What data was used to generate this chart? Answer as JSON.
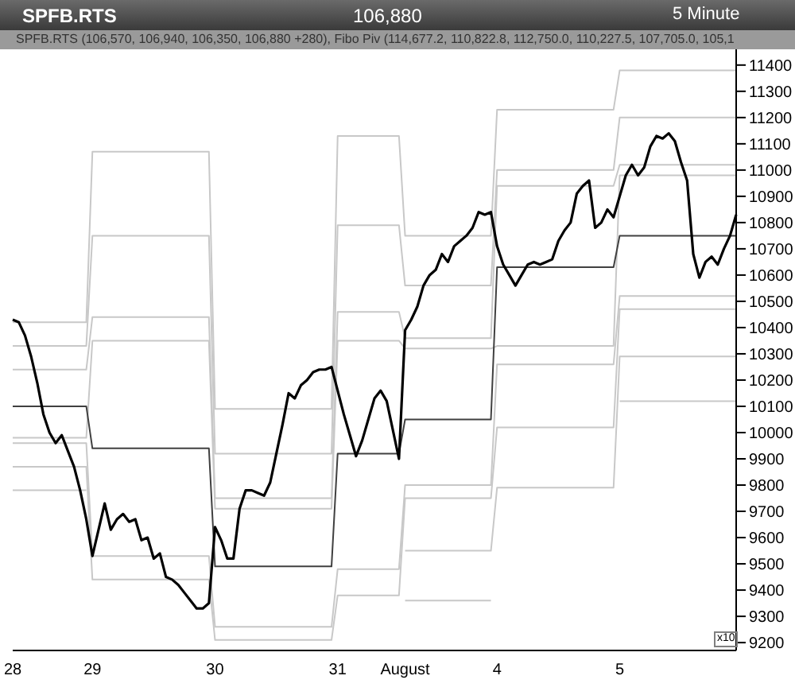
{
  "chart_data": {
    "type": "line",
    "title": "SPFB.RTS",
    "subtitle": "106,880",
    "annotations": [
      "5 Minute",
      "SPFB.RTS (106,570, 106,940, 106,350, 106,880 +280), Fibo Piv (114,677.2, 110,822.8, 112,750.0, 110,227.5, 107,705.0, 105,1"
    ],
    "ylabel": "x10",
    "categories": [
      "28",
      null,
      null,
      null,
      null,
      null,
      null,
      null,
      null,
      null,
      null,
      null,
      null,
      "29",
      null,
      null,
      null,
      null,
      null,
      null,
      null,
      null,
      null,
      null,
      null,
      null,
      null,
      null,
      null,
      null,
      null,
      null,
      null,
      "30",
      null,
      null,
      null,
      null,
      null,
      null,
      null,
      null,
      null,
      null,
      null,
      null,
      null,
      null,
      null,
      null,
      null,
      null,
      null,
      "31",
      null,
      null,
      null,
      null,
      null,
      null,
      null,
      null,
      null,
      null,
      "August",
      null,
      null,
      null,
      null,
      null,
      null,
      null,
      null,
      null,
      null,
      null,
      null,
      null,
      null,
      "4",
      null,
      null,
      null,
      null,
      null,
      null,
      null,
      null,
      null,
      null,
      null,
      null,
      null,
      null,
      null,
      null,
      null,
      null,
      null,
      "5",
      null,
      null,
      null,
      null,
      null,
      null,
      null,
      null,
      null,
      null,
      null,
      null,
      null,
      null,
      null,
      null,
      null,
      null,
      null
    ],
    "ylim": [
      9170,
      11460
    ],
    "yticks": [
      9200,
      9300,
      9400,
      9500,
      9600,
      9700,
      9800,
      9900,
      10000,
      10100,
      10200,
      10300,
      10400,
      10500,
      10600,
      10700,
      10800,
      10900,
      11000,
      11100,
      11200,
      11300,
      11400
    ],
    "grid": false,
    "legend": false,
    "marker": "none",
    "series": [
      {
        "color": "#c8c8c8",
        "values": [
          10420,
          10420,
          10420,
          10420,
          10420,
          10420,
          10420,
          10420,
          10420,
          10420,
          10420,
          10420,
          10420,
          11070,
          11070,
          11070,
          11070,
          11070,
          11070,
          11070,
          11070,
          11070,
          11070,
          11070,
          11070,
          11070,
          11070,
          11070,
          11070,
          11070,
          11070,
          11070,
          11070,
          10090,
          10090,
          10090,
          10090,
          10090,
          10090,
          10090,
          10090,
          10090,
          10090,
          10090,
          10090,
          10090,
          10090,
          10090,
          10090,
          10090,
          10090,
          10090,
          10090,
          11130,
          11130,
          11130,
          11130,
          11130,
          11130,
          11130,
          11130,
          11130,
          11130,
          11130,
          10750,
          10750,
          10750,
          10750,
          10750,
          10750,
          10750,
          10750,
          10750,
          10750,
          10750,
          10750,
          10750,
          10750,
          10750,
          11230,
          11230,
          11230,
          11230,
          11230,
          11230,
          11230,
          11230,
          11230,
          11230,
          11230,
          11230,
          11230,
          11230,
          11230,
          11230,
          11230,
          11230,
          11230,
          11230,
          11380,
          11380,
          11380,
          11380,
          11380,
          11380,
          11380,
          11380,
          11380,
          11380,
          11380,
          11380,
          11380,
          11380,
          11380,
          11380,
          11380,
          11380,
          11380,
          11380
        ]
      },
      {
        "color": "#c8c8c8",
        "values": [
          10330,
          10330,
          10330,
          10330,
          10330,
          10330,
          10330,
          10330,
          10330,
          10330,
          10330,
          10330,
          10330,
          10750,
          10750,
          10750,
          10750,
          10750,
          10750,
          10750,
          10750,
          10750,
          10750,
          10750,
          10750,
          10750,
          10750,
          10750,
          10750,
          10750,
          10750,
          10750,
          10750,
          9920,
          9920,
          9920,
          9920,
          9920,
          9920,
          9920,
          9920,
          9920,
          9920,
          9920,
          9920,
          9920,
          9920,
          9920,
          9920,
          9920,
          9920,
          9920,
          9920,
          10790,
          10790,
          10790,
          10790,
          10790,
          10790,
          10790,
          10790,
          10790,
          10790,
          10790,
          10560,
          10560,
          10560,
          10560,
          10560,
          10560,
          10560,
          10560,
          10560,
          10560,
          10560,
          10560,
          10560,
          10560,
          10560,
          11000,
          11000,
          11000,
          11000,
          11000,
          11000,
          11000,
          11000,
          11000,
          11000,
          11000,
          11000,
          11000,
          11000,
          11000,
          11000,
          11000,
          11000,
          11000,
          11000,
          11200,
          11200,
          11200,
          11200,
          11200,
          11200,
          11200,
          11200,
          11200,
          11200,
          11200,
          11200,
          11200,
          11200,
          11200,
          11200,
          11200,
          11200,
          11200,
          11200
        ]
      },
      {
        "color": "#c8c8c8",
        "values": [
          10240,
          10240,
          10240,
          10240,
          10240,
          10240,
          10240,
          10240,
          10240,
          10240,
          10240,
          10240,
          10240,
          10440,
          10440,
          10440,
          10440,
          10440,
          10440,
          10440,
          10440,
          10440,
          10440,
          10440,
          10440,
          10440,
          10440,
          10440,
          10440,
          10440,
          10440,
          10440,
          10440,
          9750,
          9750,
          9750,
          9750,
          9750,
          9750,
          9750,
          9750,
          9750,
          9750,
          9750,
          9750,
          9750,
          9750,
          9750,
          9750,
          9750,
          9750,
          9750,
          9750,
          10460,
          10460,
          10460,
          10460,
          10460,
          10460,
          10460,
          10460,
          10460,
          10460,
          10460,
          10360,
          10360,
          10360,
          10360,
          10360,
          10360,
          10360,
          10360,
          10360,
          10360,
          10360,
          10360,
          10360,
          10360,
          10360,
          10940,
          10940,
          10940,
          10940,
          10940,
          10940,
          10940,
          10940,
          10940,
          10940,
          10940,
          10940,
          10940,
          10940,
          10940,
          10940,
          10940,
          10940,
          10940,
          10940,
          11020,
          11020,
          11020,
          11020,
          11020,
          11020,
          11020,
          11020,
          11020,
          11020,
          11020,
          11020,
          11020,
          11020,
          11020,
          11020,
          11020,
          11020,
          11020,
          11020
        ]
      },
      {
        "color": "#c8c8c8",
        "values": [
          9980,
          9980,
          9980,
          9980,
          9980,
          9980,
          9980,
          9980,
          9980,
          9980,
          9980,
          9980,
          9980,
          10350,
          10350,
          10350,
          10350,
          10350,
          10350,
          10350,
          10350,
          10350,
          10350,
          10350,
          10350,
          10350,
          10350,
          10350,
          10350,
          10350,
          10350,
          10350,
          10350,
          9710,
          9710,
          9710,
          9710,
          9710,
          9710,
          9710,
          9710,
          9710,
          9710,
          9710,
          9710,
          9710,
          9710,
          9710,
          9710,
          9710,
          9710,
          9710,
          9710,
          10350,
          10350,
          10350,
          10350,
          10350,
          10350,
          10350,
          10350,
          10350,
          10350,
          10350,
          10320,
          10320,
          10320,
          10320,
          10320,
          10320,
          10320,
          10320,
          10320,
          10320,
          10320,
          10320,
          10320,
          10320,
          10320,
          10330,
          10330,
          10330,
          10330,
          10330,
          10330,
          10330,
          10330,
          10330,
          10330,
          10330,
          10330,
          10330,
          10330,
          10330,
          10330,
          10330,
          10330,
          10330,
          10330,
          10980,
          10980,
          10980,
          10980,
          10980,
          10980,
          10980,
          10980,
          10980,
          10980,
          10980,
          10980,
          10980,
          10980,
          10980,
          10980,
          10980,
          10980,
          10980,
          10980
        ]
      },
      {
        "color": "#c8c8c8",
        "values": [
          9960,
          9960,
          9960,
          9960,
          9960,
          9960,
          9960,
          9960,
          9960,
          9960,
          9960,
          9960,
          9960,
          9530,
          9530,
          9530,
          9530,
          9530,
          9530,
          9530,
          9530,
          9530,
          9530,
          9530,
          9530,
          9530,
          9530,
          9530,
          9530,
          9530,
          9530,
          9530,
          9530,
          9260,
          9260,
          9260,
          9260,
          9260,
          9260,
          9260,
          9260,
          9260,
          9260,
          9260,
          9260,
          9260,
          9260,
          9260,
          9260,
          9260,
          9260,
          9260,
          9260,
          9480,
          9480,
          9480,
          9480,
          9480,
          9480,
          9480,
          9480,
          9480,
          9480,
          9480,
          9800,
          9800,
          9800,
          9800,
          9800,
          9800,
          9800,
          9800,
          9800,
          9800,
          9800,
          9800,
          9800,
          9800,
          9800,
          10260,
          10260,
          10260,
          10260,
          10260,
          10260,
          10260,
          10260,
          10260,
          10260,
          10260,
          10260,
          10260,
          10260,
          10260,
          10260,
          10260,
          10260,
          10260,
          10260,
          10520,
          10520,
          10520,
          10520,
          10520,
          10520,
          10520,
          10520,
          10520,
          10520,
          10520,
          10520,
          10520,
          10520,
          10520,
          10520,
          10520,
          10520,
          10520,
          10520
        ]
      },
      {
        "color": "#c8c8c8",
        "values": [
          9870,
          9870,
          9870,
          9870,
          9870,
          9870,
          9870,
          9870,
          9870,
          9870,
          9870,
          9870,
          9870,
          9440,
          9440,
          9440,
          9440,
          9440,
          9440,
          9440,
          9440,
          9440,
          9440,
          9440,
          9440,
          9440,
          9440,
          9440,
          9440,
          9440,
          9440,
          9440,
          9440,
          9210,
          9210,
          9210,
          9210,
          9210,
          9210,
          9210,
          9210,
          9210,
          9210,
          9210,
          9210,
          9210,
          9210,
          9210,
          9210,
          9210,
          9210,
          9210,
          9210,
          9380,
          9380,
          9380,
          9380,
          9380,
          9380,
          9380,
          9380,
          9380,
          9380,
          9380,
          9750,
          9750,
          9750,
          9750,
          9750,
          9750,
          9750,
          9750,
          9750,
          9750,
          9750,
          9750,
          9750,
          9750,
          9750,
          10020,
          10020,
          10020,
          10020,
          10020,
          10020,
          10020,
          10020,
          10020,
          10020,
          10020,
          10020,
          10020,
          10020,
          10020,
          10020,
          10020,
          10020,
          10020,
          10020,
          10470,
          10470,
          10470,
          10470,
          10470,
          10470,
          10470,
          10470,
          10470,
          10470,
          10470,
          10470,
          10470,
          10470,
          10470,
          10470,
          10470,
          10470,
          10470,
          10470
        ]
      },
      {
        "color": "#c8c8c8",
        "values": [
          9780,
          9780,
          9780,
          9780,
          9780,
          9780,
          9780,
          9780,
          9780,
          9780,
          9780,
          9780,
          9780,
          null,
          null,
          null,
          null,
          null,
          null,
          null,
          null,
          null,
          null,
          null,
          null,
          null,
          null,
          null,
          null,
          null,
          null,
          null,
          null,
          null,
          null,
          null,
          null,
          null,
          null,
          null,
          null,
          null,
          null,
          null,
          null,
          null,
          null,
          null,
          null,
          null,
          null,
          null,
          null,
          null,
          null,
          null,
          null,
          null,
          null,
          null,
          null,
          null,
          null,
          null,
          9550,
          9550,
          9550,
          9550,
          9550,
          9550,
          9550,
          9550,
          9550,
          9550,
          9550,
          9550,
          9550,
          9550,
          9550,
          9790,
          9790,
          9790,
          9790,
          9790,
          9790,
          9790,
          9790,
          9790,
          9790,
          9790,
          9790,
          9790,
          9790,
          9790,
          9790,
          9790,
          9790,
          9790,
          9790,
          10290,
          10290,
          10290,
          10290,
          10290,
          10290,
          10290,
          10290,
          10290,
          10290,
          10290,
          10290,
          10290,
          10290,
          10290,
          10290,
          10290,
          10290,
          10290,
          10290
        ]
      },
      {
        "color": "#c8c8c8",
        "values": [
          null,
          null,
          null,
          null,
          null,
          null,
          null,
          null,
          null,
          null,
          null,
          null,
          null,
          null,
          null,
          null,
          null,
          null,
          null,
          null,
          null,
          null,
          null,
          null,
          null,
          null,
          null,
          null,
          null,
          null,
          null,
          null,
          null,
          null,
          null,
          null,
          null,
          null,
          null,
          null,
          null,
          null,
          null,
          null,
          null,
          null,
          null,
          null,
          null,
          null,
          null,
          null,
          null,
          null,
          null,
          null,
          null,
          null,
          null,
          null,
          null,
          null,
          null,
          null,
          9360,
          9360,
          9360,
          9360,
          9360,
          9360,
          9360,
          9360,
          9360,
          9360,
          9360,
          9360,
          9360,
          9360,
          9360,
          null,
          null,
          null,
          null,
          null,
          null,
          null,
          null,
          null,
          null,
          null,
          null,
          null,
          null,
          null,
          null,
          null,
          null,
          null,
          null,
          10120,
          10120,
          10120,
          10120,
          10120,
          10120,
          10120,
          10120,
          10120,
          10120,
          10120,
          10120,
          10120,
          10120,
          10120,
          10120,
          10120,
          10120,
          10120,
          10120
        ]
      },
      {
        "color": "#404040",
        "values": [
          10100,
          10100,
          10100,
          10100,
          10100,
          10100,
          10100,
          10100,
          10100,
          10100,
          10100,
          10100,
          10100,
          9940,
          9940,
          9940,
          9940,
          9940,
          9940,
          9940,
          9940,
          9940,
          9940,
          9940,
          9940,
          9940,
          9940,
          9940,
          9940,
          9940,
          9940,
          9940,
          9940,
          9490,
          9490,
          9490,
          9490,
          9490,
          9490,
          9490,
          9490,
          9490,
          9490,
          9490,
          9490,
          9490,
          9490,
          9490,
          9490,
          9490,
          9490,
          9490,
          9490,
          9920,
          9920,
          9920,
          9920,
          9920,
          9920,
          9920,
          9920,
          9920,
          9920,
          9920,
          10050,
          10050,
          10050,
          10050,
          10050,
          10050,
          10050,
          10050,
          10050,
          10050,
          10050,
          10050,
          10050,
          10050,
          10050,
          10630,
          10630,
          10630,
          10630,
          10630,
          10630,
          10630,
          10630,
          10630,
          10630,
          10630,
          10630,
          10630,
          10630,
          10630,
          10630,
          10630,
          10630,
          10630,
          10630,
          10750,
          10750,
          10750,
          10750,
          10750,
          10750,
          10750,
          10750,
          10750,
          10750,
          10750,
          10750,
          10750,
          10750,
          10750,
          10750,
          10750,
          10750,
          10750,
          10750
        ]
      },
      {
        "color": "#000000",
        "values": [
          10430,
          10420,
          10370,
          10290,
          10190,
          10070,
          10000,
          9960,
          9990,
          9930,
          9870,
          9780,
          9670,
          9530,
          9630,
          9730,
          9630,
          9670,
          9690,
          9660,
          9670,
          9590,
          9600,
          9520,
          9540,
          9450,
          9440,
          9420,
          9390,
          9360,
          9330,
          9330,
          9350,
          9640,
          9590,
          9520,
          9520,
          9710,
          9780,
          9780,
          9770,
          9760,
          9810,
          9920,
          10030,
          10150,
          10130,
          10180,
          10200,
          10230,
          10240,
          10240,
          10250,
          10160,
          10070,
          9990,
          9910,
          9970,
          10050,
          10130,
          10160,
          10120,
          10010,
          9900,
          10390,
          10430,
          10480,
          10560,
          10600,
          10620,
          10680,
          10650,
          10710,
          10730,
          10750,
          10780,
          10840,
          10830,
          10840,
          10710,
          10640,
          10600,
          10560,
          10600,
          10640,
          10650,
          10640,
          10650,
          10660,
          10730,
          10770,
          10800,
          10910,
          10940,
          10960,
          10780,
          10800,
          10850,
          10820,
          10900,
          10980,
          11020,
          10980,
          11010,
          11090,
          11130,
          11120,
          11140,
          11110,
          11030,
          10960,
          10680,
          10590,
          10650,
          10670,
          10640,
          10700,
          10750,
          10830
        ]
      }
    ]
  }
}
